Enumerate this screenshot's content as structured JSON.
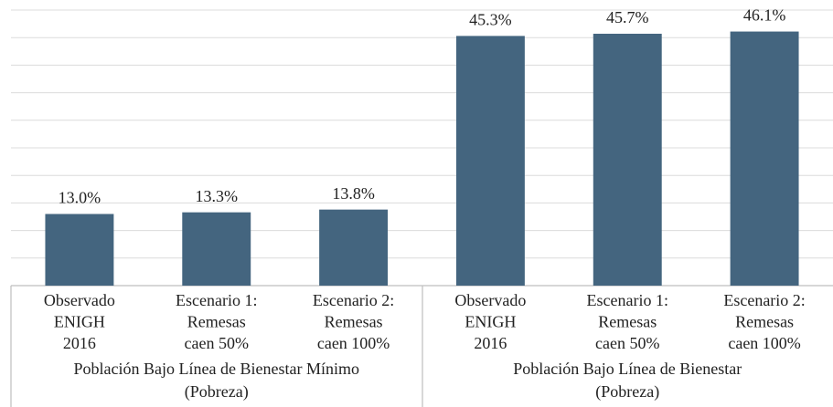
{
  "chart_data": {
    "type": "bar",
    "categories": [
      [
        "Observado",
        "ENIGH",
        "2016"
      ],
      [
        "Escenario 1:",
        "Remesas",
        "caen 50%"
      ],
      [
        "Escenario 2:",
        "Remesas",
        "caen 100%"
      ],
      [
        "Observado",
        "ENIGH",
        "2016"
      ],
      [
        "Escenario 1:",
        "Remesas",
        "caen 50%"
      ],
      [
        "Escenario 2:",
        "Remesas",
        "caen 100%"
      ]
    ],
    "groups": [
      [
        "Población Bajo Línea de Bienestar Mínimo",
        "(Pobreza)"
      ],
      [
        "Población Bajo Línea de Bienestar",
        "(Pobreza)"
      ]
    ],
    "values": [
      13.0,
      13.3,
      13.8,
      45.3,
      45.7,
      46.1
    ],
    "value_labels": [
      "13.0%",
      "13.3%",
      "13.8%",
      "45.3%",
      "45.7%",
      "46.1%"
    ],
    "color": "#44657f",
    "ylim": [
      0,
      50
    ],
    "yticks": [
      0,
      5,
      10,
      15,
      20,
      25,
      30,
      35,
      40,
      45,
      50
    ],
    "grid": true
  }
}
